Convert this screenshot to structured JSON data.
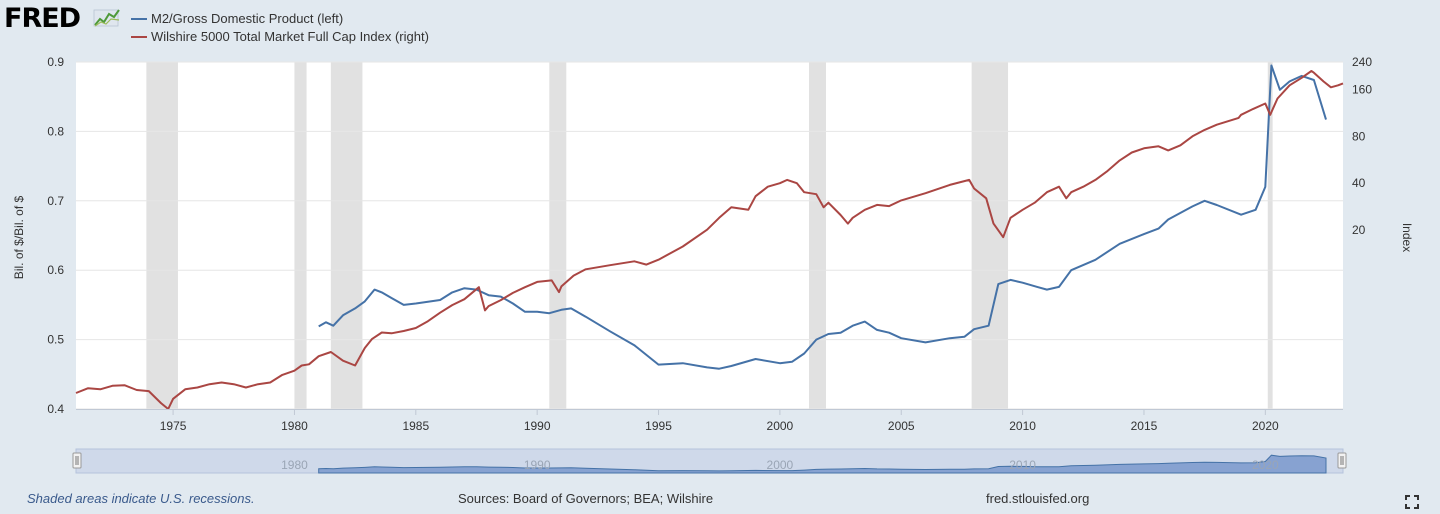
{
  "brand": {
    "logo_text": "FRED",
    "logo_icon": "line-chart-icon"
  },
  "legend": [
    {
      "label": "M2/Gross Domestic Product (left)",
      "color": "#4572a7"
    },
    {
      "label": "Wilshire 5000 Total Market Full Cap Index (right)",
      "color": "#aa4643"
    }
  ],
  "footer": {
    "note": "Shaded areas indicate U.S. recessions.",
    "sources": "Sources: Board of Governors; BEA; Wilshire",
    "site": "fred.stlouisfed.org"
  },
  "controls": {
    "fullscreen_icon": "fullscreen-icon",
    "navigator": "range-navigator"
  },
  "chart_data": {
    "type": "line",
    "xlim": [
      1971,
      2023.2
    ],
    "x_ticks": [
      "1975",
      "1980",
      "1985",
      "1990",
      "1995",
      "2000",
      "2005",
      "2010",
      "2015",
      "2020"
    ],
    "navigator_labels": [
      "1980",
      "1990",
      "2000",
      "2010",
      "2020"
    ],
    "recessions": [
      [
        1973.9,
        1975.2
      ],
      [
        1980.0,
        1980.5
      ],
      [
        1981.5,
        1982.8
      ],
      [
        1990.5,
        1991.2
      ],
      [
        2001.2,
        2001.9
      ],
      [
        2007.9,
        2009.4
      ],
      [
        2020.1,
        2020.3
      ]
    ],
    "left_axis": {
      "label": "Bil. of $/Bil. of $",
      "ylim": [
        0.4,
        0.9
      ],
      "ticks": [
        "0.4",
        "0.5",
        "0.6",
        "0.7",
        "0.8",
        "0.9"
      ]
    },
    "right_axis": {
      "label": "Index",
      "scale": "log",
      "ylim": [
        1.42,
        240
      ],
      "ticks": [
        "20",
        "40",
        "80",
        "160",
        "240"
      ]
    },
    "series": [
      {
        "name": "M2/Gross Domestic Product (left)",
        "axis": "left",
        "color": "#4572a7",
        "x": [
          1981.0,
          1981.3,
          1981.6,
          1982.0,
          1982.5,
          1982.9,
          1983.3,
          1983.6,
          1984.0,
          1984.5,
          1985.0,
          1986.0,
          1986.5,
          1987.0,
          1987.5,
          1988.0,
          1988.5,
          1989.0,
          1989.5,
          1990.0,
          1990.5,
          1991.0,
          1991.4,
          1992.0,
          1993.0,
          1994.0,
          1995.0,
          1996.0,
          1997.0,
          1997.5,
          1998.0,
          1999.0,
          2000.0,
          2000.5,
          2001.0,
          2001.5,
          2002.0,
          2002.5,
          2003.0,
          2003.5,
          2004.0,
          2004.5,
          2005.0,
          2006.0,
          2007.0,
          2007.6,
          2008.0,
          2008.6,
          2009.0,
          2009.5,
          2010.0,
          2010.6,
          2011.0,
          2011.5,
          2012.0,
          2013.0,
          2014.0,
          2015.0,
          2015.6,
          2016.0,
          2017.0,
          2017.5,
          2018.0,
          2019.0,
          2019.6,
          2020.0,
          2020.25,
          2020.6,
          2021.0,
          2021.5,
          2022.0,
          2022.5
        ],
        "values": [
          0.519,
          0.525,
          0.52,
          0.535,
          0.545,
          0.555,
          0.572,
          0.568,
          0.56,
          0.55,
          0.552,
          0.557,
          0.568,
          0.574,
          0.572,
          0.564,
          0.562,
          0.552,
          0.54,
          0.54,
          0.538,
          0.543,
          0.545,
          0.533,
          0.512,
          0.492,
          0.464,
          0.466,
          0.46,
          0.458,
          0.462,
          0.472,
          0.466,
          0.468,
          0.48,
          0.5,
          0.508,
          0.51,
          0.52,
          0.526,
          0.514,
          0.51,
          0.502,
          0.496,
          0.502,
          0.504,
          0.515,
          0.52,
          0.58,
          0.586,
          0.582,
          0.576,
          0.572,
          0.576,
          0.6,
          0.615,
          0.638,
          0.652,
          0.66,
          0.673,
          0.692,
          0.7,
          0.694,
          0.68,
          0.687,
          0.72,
          0.895,
          0.86,
          0.872,
          0.88,
          0.874,
          0.817
        ]
      },
      {
        "name": "Wilshire 5000 Total Market Full Cap Index (right)",
        "axis": "right",
        "color": "#aa4643",
        "x": [
          1971.0,
          1971.5,
          1972.0,
          1972.5,
          1973.0,
          1973.5,
          1974.0,
          1974.5,
          1974.8,
          1975.0,
          1975.5,
          1976.0,
          1976.5,
          1977.0,
          1977.5,
          1978.0,
          1978.5,
          1979.0,
          1979.5,
          1980.0,
          1980.3,
          1980.6,
          1981.0,
          1981.5,
          1982.0,
          1982.5,
          1982.9,
          1983.2,
          1983.6,
          1984.0,
          1984.5,
          1985.0,
          1985.5,
          1986.0,
          1986.5,
          1987.0,
          1987.6,
          1987.85,
          1988.0,
          1988.5,
          1989.0,
          1989.5,
          1990.0,
          1990.6,
          1990.9,
          1991.0,
          1991.5,
          1992.0,
          1993.0,
          1994.0,
          1994.5,
          1995.0,
          1996.0,
          1997.0,
          1997.5,
          1998.0,
          1998.7,
          1999.0,
          1999.5,
          2000.0,
          2000.3,
          2000.7,
          2001.0,
          2001.5,
          2001.8,
          2002.0,
          2002.5,
          2002.8,
          2003.0,
          2003.5,
          2004.0,
          2004.5,
          2005.0,
          2006.0,
          2007.0,
          2007.8,
          2008.0,
          2008.5,
          2008.8,
          2009.2,
          2009.5,
          2010.0,
          2010.5,
          2011.0,
          2011.5,
          2011.8,
          2012.0,
          2012.5,
          2013.0,
          2013.5,
          2014.0,
          2014.5,
          2015.0,
          2015.6,
          2016.0,
          2016.5,
          2017.0,
          2017.5,
          2018.0,
          2018.9,
          2019.0,
          2019.5,
          2020.0,
          2020.2,
          2020.5,
          2021.0,
          2021.5,
          2021.9,
          2022.0,
          2022.4,
          2022.7,
          2023.0,
          2023.2
        ],
        "values": [
          1.8,
          1.93,
          1.9,
          2.0,
          2.02,
          1.88,
          1.85,
          1.55,
          1.42,
          1.65,
          1.9,
          1.95,
          2.05,
          2.1,
          2.05,
          1.95,
          2.05,
          2.1,
          2.35,
          2.5,
          2.7,
          2.75,
          3.1,
          3.3,
          2.9,
          2.7,
          3.5,
          4.0,
          4.4,
          4.35,
          4.5,
          4.7,
          5.2,
          5.9,
          6.6,
          7.2,
          8.6,
          6.1,
          6.5,
          7.1,
          7.9,
          8.6,
          9.3,
          9.5,
          8.0,
          8.7,
          10.2,
          11.2,
          11.9,
          12.6,
          12.0,
          12.9,
          15.7,
          20.1,
          24.0,
          28.0,
          27.0,
          33.0,
          38.0,
          40.0,
          42.0,
          40.0,
          35.0,
          34.0,
          28.0,
          30.0,
          25.0,
          22.0,
          24.0,
          27.0,
          29.0,
          28.5,
          31.0,
          34.5,
          39.0,
          42.0,
          37.0,
          32.0,
          22.0,
          18.0,
          24.0,
          27.0,
          30.0,
          35.0,
          38.0,
          32.0,
          35.0,
          38.0,
          42.0,
          48.0,
          56.0,
          63.0,
          67.0,
          69.0,
          65.0,
          70.0,
          80.0,
          88.0,
          95.0,
          105.0,
          110.0,
          120.0,
          130.0,
          110.0,
          140.0,
          170.0,
          190.0,
          210.0,
          205.0,
          180.0,
          165.0,
          170.0,
          175.0
        ]
      }
    ]
  }
}
